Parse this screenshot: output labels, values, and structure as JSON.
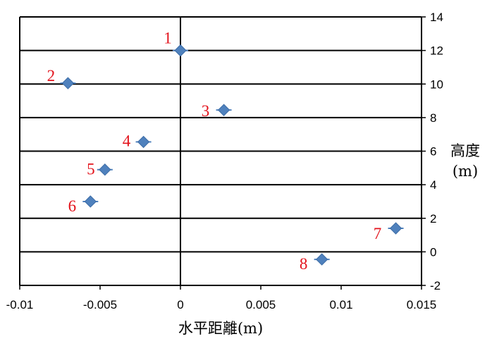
{
  "chart_data": {
    "type": "scatter",
    "title": "",
    "xlabel": "水平距離(m)",
    "ylabel_line1": "高度",
    "ylabel_line2": "(m)",
    "xlim": [
      -0.01,
      0.015
    ],
    "ylim": [
      -2,
      14
    ],
    "x_ticks": [
      "-0.01",
      "-0.005",
      "0",
      "0.005",
      "0.01",
      "0.015"
    ],
    "x_tick_values": [
      -0.01,
      -0.005,
      0,
      0.005,
      0.01,
      0.015
    ],
    "y_ticks": [
      "-2",
      "0",
      "2",
      "4",
      "6",
      "8",
      "10",
      "12",
      "14"
    ],
    "y_tick_values": [
      -2,
      0,
      2,
      4,
      6,
      8,
      10,
      12,
      14
    ],
    "y_axis_side": "right",
    "grid": "horizontal",
    "marker": "diamond",
    "marker_color": "#4F81BD",
    "label_color": "#E3121B",
    "series": [
      {
        "points": [
          {
            "label": "1",
            "x": 0.0,
            "y": 12.0
          },
          {
            "label": "2",
            "x": -0.007,
            "y": 10.05
          },
          {
            "label": "3",
            "x": 0.0027,
            "y": 8.45
          },
          {
            "label": "4",
            "x": -0.0023,
            "y": 6.55
          },
          {
            "label": "5",
            "x": -0.0047,
            "y": 4.9
          },
          {
            "label": "6",
            "x": -0.0056,
            "y": 3.0
          },
          {
            "label": "7",
            "x": 0.0134,
            "y": 1.4
          },
          {
            "label": "8",
            "x": 0.0088,
            "y": -0.45
          }
        ]
      }
    ]
  }
}
